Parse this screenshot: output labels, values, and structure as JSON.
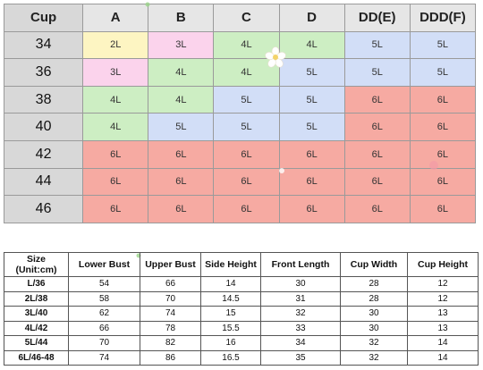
{
  "cup_chart": {
    "corner_label": "Cup",
    "columns": [
      "A",
      "B",
      "C",
      "D",
      "DD(E)",
      "DDD(F)"
    ],
    "rows": [
      {
        "band": "34",
        "sizes": [
          "2L",
          "3L",
          "4L",
          "4L",
          "5L",
          "5L"
        ]
      },
      {
        "band": "36",
        "sizes": [
          "3L",
          "4L",
          "4L",
          "5L",
          "5L",
          "5L"
        ]
      },
      {
        "band": "38",
        "sizes": [
          "4L",
          "4L",
          "5L",
          "5L",
          "6L",
          "6L"
        ]
      },
      {
        "band": "40",
        "sizes": [
          "4L",
          "5L",
          "5L",
          "5L",
          "6L",
          "6L"
        ]
      },
      {
        "band": "42",
        "sizes": [
          "6L",
          "6L",
          "6L",
          "6L",
          "6L",
          "6L"
        ]
      },
      {
        "band": "44",
        "sizes": [
          "6L",
          "6L",
          "6L",
          "6L",
          "6L",
          "6L"
        ]
      },
      {
        "band": "46",
        "sizes": [
          "6L",
          "6L",
          "6L",
          "6L",
          "6L",
          "6L"
        ]
      }
    ],
    "size_colors": {
      "2L": "#fdf5c2",
      "3L": "#fbd3ec",
      "4L": "#cdeec3",
      "5L": "#d2def7",
      "6L": "#f6aaa2"
    }
  },
  "size_table": {
    "headers": [
      "Size\n(Unit:cm)",
      "Lower Bust",
      "Upper Bust",
      "Side Height",
      "Front Length",
      "Cup Width",
      "Cup Height"
    ],
    "rows": [
      [
        "L/36",
        "54",
        "66",
        "14",
        "30",
        "28",
        "12"
      ],
      [
        "2L/38",
        "58",
        "70",
        "14.5",
        "31",
        "28",
        "12"
      ],
      [
        "3L/40",
        "62",
        "74",
        "15",
        "32",
        "30",
        "13"
      ],
      [
        "4L/42",
        "66",
        "78",
        "15.5",
        "33",
        "30",
        "13"
      ],
      [
        "5L/44",
        "70",
        "82",
        "16",
        "34",
        "32",
        "14"
      ],
      [
        "6L/46-48",
        "74",
        "86",
        "16.5",
        "35",
        "32",
        "14"
      ]
    ]
  }
}
